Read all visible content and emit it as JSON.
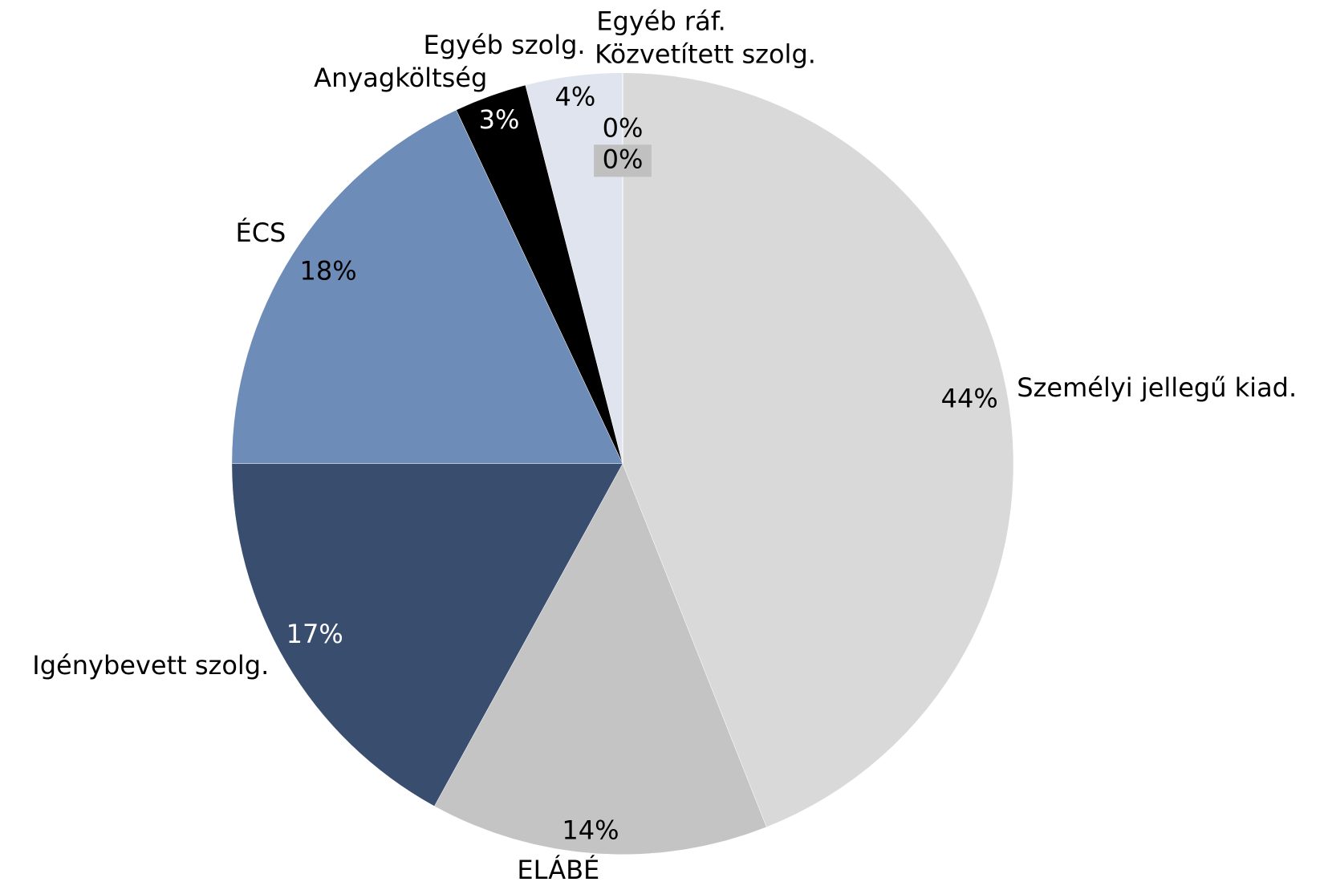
{
  "chart_data": {
    "type": "pie",
    "categories": [
      "Személyi jellegű kiad.",
      "ELÁBÉ",
      "Igénybevett szolg.",
      "ÉCS",
      "Anyagköltség",
      "Egyéb szolg.",
      "Közvetített szolg.",
      "Egyéb ráf."
    ],
    "values": [
      44,
      14,
      17,
      18,
      3,
      4,
      0,
      0
    ],
    "value_labels": [
      "44%",
      "14%",
      "17%",
      "18%",
      "3%",
      "4%",
      "0%",
      "0%"
    ],
    "colors": [
      "#d9d9d9",
      "#c4c4c4",
      "#394e6e",
      "#6e8cb8",
      "#000000",
      "#dfe4ee",
      "#ffffff",
      "#c0c0c0"
    ]
  }
}
